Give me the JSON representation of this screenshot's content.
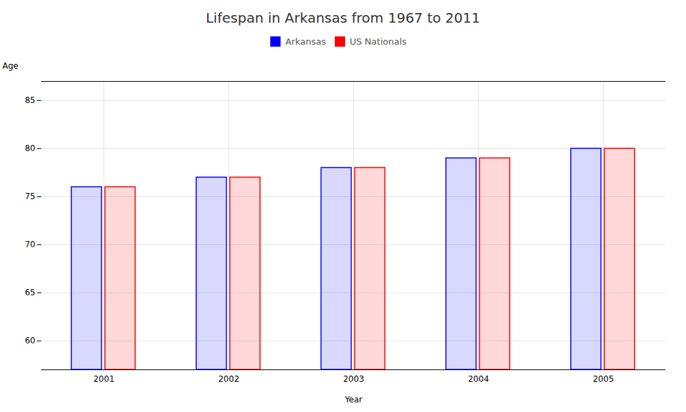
{
  "chart_data": {
    "type": "bar",
    "title": "Lifespan in Arkansas from 1967 to 2011",
    "xlabel": "Year",
    "ylabel": "Age",
    "categories": [
      2001,
      2002,
      2003,
      2004,
      2005
    ],
    "series": [
      {
        "name": "Arkansas",
        "color": "#0000ff",
        "values": [
          76,
          77,
          78,
          79,
          80
        ]
      },
      {
        "name": "US Nationals",
        "color": "#ff0000",
        "values": [
          76,
          77,
          78,
          79,
          80
        ]
      }
    ],
    "ylim": [
      57,
      87
    ],
    "yticks": [
      60,
      65,
      70,
      75,
      80,
      85
    ],
    "grid": true,
    "legend": "top"
  }
}
